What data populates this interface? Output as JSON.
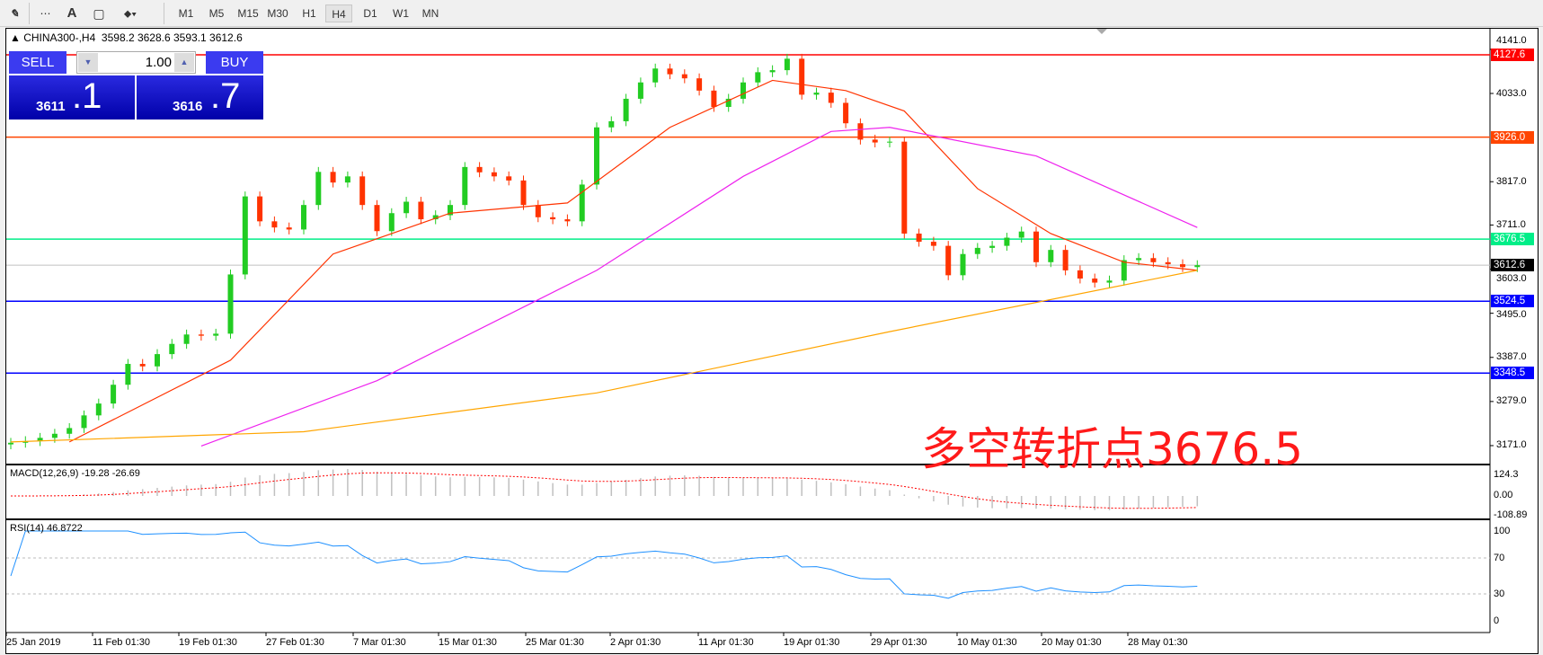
{
  "toolbar": {
    "icons": [
      "line-studies-icon",
      "grid-icon",
      "text-icon",
      "text-label-icon",
      "arrows-icon"
    ],
    "text_tool": "A",
    "timeframes": [
      "M1",
      "M5",
      "M15",
      "M30",
      "H1",
      "H4",
      "D1",
      "W1",
      "MN"
    ],
    "active_timeframe": "H4"
  },
  "header": {
    "symbol": "CHINA300-,H4",
    "ohlc": "3598.2 3628.6 3593.1 3612.6"
  },
  "trade_panel": {
    "sell_label": "SELL",
    "buy_label": "BUY",
    "lot": "1.00",
    "sell_price_main": "3611",
    "sell_price_frac": ".1",
    "buy_price_main": "3616",
    "buy_price_frac": ".7"
  },
  "annotation": "多空转折点3676.5",
  "colors": {
    "bull": "#22cc22",
    "bear": "#ff3300",
    "ma_fast": "#ff3300",
    "ma_mid": "#ee22ee",
    "ma_slow": "#ffa500",
    "macd_hist": "#c0c0c0",
    "macd_signal": "#ff0000",
    "rsi": "#1e90ff"
  },
  "chart_data": {
    "type": "candlestick",
    "price_axis": {
      "ticks": [
        "4141.0",
        "4033.0",
        "3817.0",
        "3711.0",
        "3603.0",
        "3495.0",
        "3387.0",
        "3279.0",
        "3171.0"
      ],
      "range": [
        3171,
        4141
      ]
    },
    "levels": [
      {
        "value": "4127.6",
        "color": "#ff0000"
      },
      {
        "value": "3926.0",
        "color": "#ff4500"
      },
      {
        "value": "3676.5",
        "color": "#00ee88"
      },
      {
        "value": "3612.6",
        "color": "#000000",
        "line": "#c0c0c0"
      },
      {
        "value": "3524.5",
        "color": "#0000ff"
      },
      {
        "value": "3348.5",
        "color": "#0000ff"
      }
    ],
    "closes": [
      3178,
      3182,
      3190,
      3200,
      3214,
      3245,
      3274,
      3320,
      3371,
      3365,
      3395,
      3420,
      3443,
      3440,
      3445,
      3590,
      3781,
      3720,
      3705,
      3700,
      3760,
      3841,
      3815,
      3830,
      3760,
      3696,
      3740,
      3768,
      3725,
      3735,
      3760,
      3853,
      3840,
      3830,
      3820,
      3760,
      3730,
      3725,
      3720,
      3810,
      3950,
      3965,
      4020,
      4060,
      4094,
      4080,
      4070,
      4040,
      4000,
      4020,
      4060,
      4085,
      4090,
      4118,
      4030,
      4035,
      4010,
      3960,
      3920,
      3913,
      3915,
      3690,
      3670,
      3660,
      3588,
      3640,
      3655,
      3660,
      3680,
      3695,
      3620,
      3650,
      3600,
      3580,
      3570,
      3575,
      3625,
      3630,
      3620,
      3615,
      3608,
      3612.6
    ],
    "ma_lines": [
      {
        "color": "#ff3300",
        "points": [
          [
            4,
            3180
          ],
          [
            15,
            3380
          ],
          [
            22,
            3640
          ],
          [
            30,
            3740
          ],
          [
            38,
            3765
          ],
          [
            45,
            3950
          ],
          [
            52,
            4065
          ],
          [
            57,
            4040
          ],
          [
            61,
            3990
          ],
          [
            66,
            3800
          ],
          [
            71,
            3690
          ],
          [
            76,
            3620
          ],
          [
            81,
            3600
          ]
        ]
      },
      {
        "color": "#ee22ee",
        "points": [
          [
            13,
            3170
          ],
          [
            25,
            3330
          ],
          [
            40,
            3600
          ],
          [
            50,
            3830
          ],
          [
            56,
            3940
          ],
          [
            60,
            3950
          ],
          [
            70,
            3880
          ],
          [
            81,
            3705
          ]
        ]
      },
      {
        "color": "#ffa500",
        "points": [
          [
            0,
            3180
          ],
          [
            20,
            3205
          ],
          [
            40,
            3300
          ],
          [
            60,
            3450
          ],
          [
            81,
            3600
          ]
        ]
      }
    ],
    "macd": {
      "label": "MACD(12,26,9) -19.28 -26.69",
      "ticks": [
        "124.3",
        "0.00",
        "-108.89"
      ],
      "range": [
        -108.89,
        124.3
      ]
    },
    "rsi": {
      "label": "RSI(14) 46.8722",
      "ticks": [
        "100",
        "70",
        "30",
        "0"
      ],
      "levels": [
        70,
        30
      ]
    },
    "x_ticks": [
      "25 Jan 2019",
      "11 Feb 01:30",
      "19 Feb 01:30",
      "27 Feb 01:30",
      "7 Mar 01:30",
      "15 Mar 01:30",
      "25 Mar 01:30",
      "2 Apr 01:30",
      "11 Apr 01:30",
      "19 Apr 01:30",
      "29 Apr 01:30",
      "10 May 01:30",
      "20 May 01:30",
      "28 May 01:30"
    ]
  }
}
